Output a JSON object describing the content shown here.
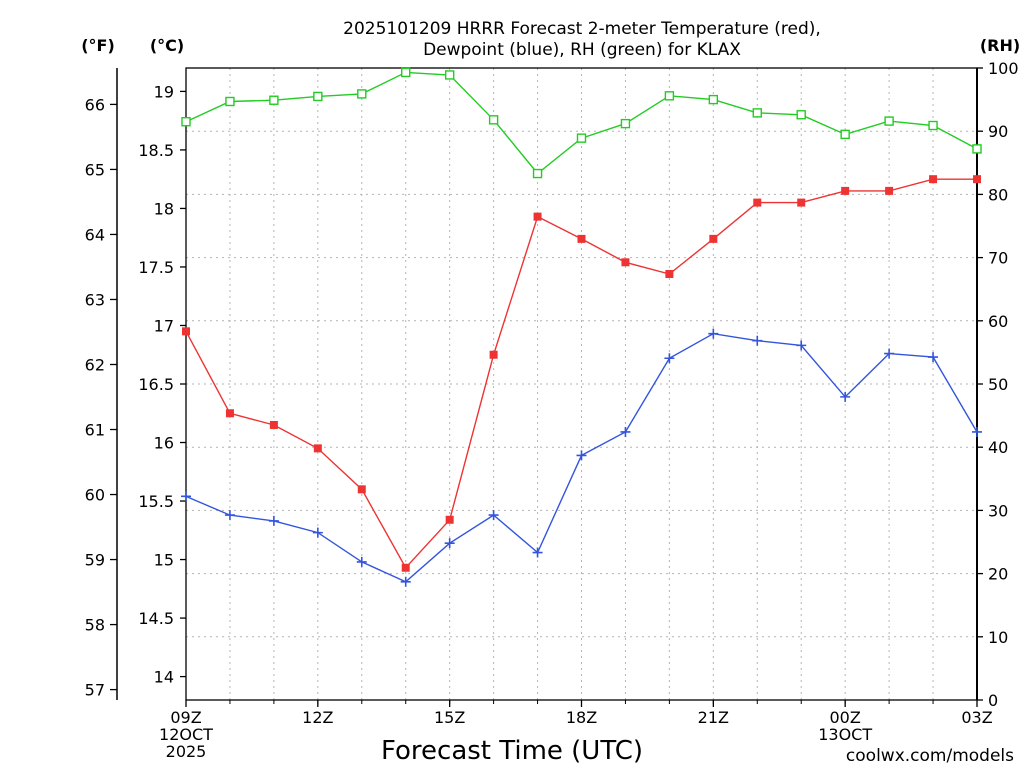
{
  "title_lines": [
    "2025101209 HRRR Forecast 2-meter Temperature (red),",
    "Dewpoint (blue), RH (green) for KLAX"
  ],
  "unit_labels": {
    "fahrenheit": "(°F)",
    "celsius": "(°C)",
    "rh": "(RH)"
  },
  "xlabel": "Forecast Time (UTC)",
  "credit": "coolwx.com/models",
  "colors": {
    "temperature": "#ee3333",
    "dewpoint": "#3355dd",
    "rh": "#22cc22",
    "credit": "#ee3333",
    "grid": "#b4b4b4"
  },
  "chart_data": {
    "type": "line",
    "title": "2025101209 HRRR Forecast 2-meter Temperature (red), Dewpoint (blue), RH (green) for KLAX",
    "xlabel": "Forecast Time (UTC)",
    "ylabel_left_outer": "(°F)",
    "ylabel_left": "(°C)",
    "ylabel_right": "(RH)",
    "x_hours": [
      0,
      1,
      2,
      3,
      4,
      5,
      6,
      7,
      8,
      9,
      10,
      11,
      12,
      13,
      14,
      15,
      16,
      17,
      18
    ],
    "xlim": [
      0,
      18
    ],
    "x_ticks": [
      {
        "hour": 0,
        "lines": [
          "09Z",
          "12OCT",
          "2025"
        ]
      },
      {
        "hour": 3,
        "lines": [
          "12Z"
        ]
      },
      {
        "hour": 6,
        "lines": [
          "15Z"
        ]
      },
      {
        "hour": 9,
        "lines": [
          "18Z"
        ]
      },
      {
        "hour": 12,
        "lines": [
          "21Z"
        ]
      },
      {
        "hour": 15,
        "lines": [
          "00Z",
          "13OCT"
        ]
      },
      {
        "hour": 18,
        "lines": [
          "03Z"
        ]
      }
    ],
    "celsius_axis": {
      "ylim": [
        13.8,
        19.2
      ],
      "ticks": [
        14,
        14.5,
        15,
        15.5,
        16,
        16.5,
        17,
        17.5,
        18,
        18.5,
        19
      ]
    },
    "fahrenheit_axis": {
      "ticks": [
        57,
        58,
        59,
        60,
        61,
        62,
        63,
        64,
        65,
        66
      ]
    },
    "rh_axis": {
      "ylim": [
        0,
        100
      ],
      "ticks": [
        0,
        10,
        20,
        30,
        40,
        50,
        60,
        70,
        80,
        90,
        100
      ]
    },
    "grid": true,
    "series": [
      {
        "name": "Temperature",
        "axis": "celsius",
        "marker": "filled-square",
        "values": [
          16.95,
          16.25,
          16.15,
          15.95,
          15.6,
          14.93,
          15.34,
          16.75,
          17.93,
          17.74,
          17.54,
          17.44,
          17.74,
          18.05,
          18.05,
          18.15,
          18.15,
          18.25,
          18.25
        ]
      },
      {
        "name": "Dewpoint",
        "axis": "celsius",
        "marker": "plus",
        "values": [
          15.54,
          15.38,
          15.33,
          15.23,
          14.98,
          14.81,
          15.14,
          15.38,
          15.06,
          15.89,
          16.09,
          16.72,
          16.93,
          16.87,
          16.83,
          16.39,
          16.76,
          16.73,
          16.09
        ]
      },
      {
        "name": "RH",
        "axis": "rh",
        "marker": "open-square",
        "values": [
          91.5,
          94.7,
          94.9,
          95.5,
          95.9,
          99.3,
          98.9,
          91.8,
          83.3,
          88.9,
          91.2,
          95.6,
          95.0,
          92.9,
          92.6,
          89.5,
          91.6,
          90.9,
          87.2
        ]
      }
    ]
  }
}
